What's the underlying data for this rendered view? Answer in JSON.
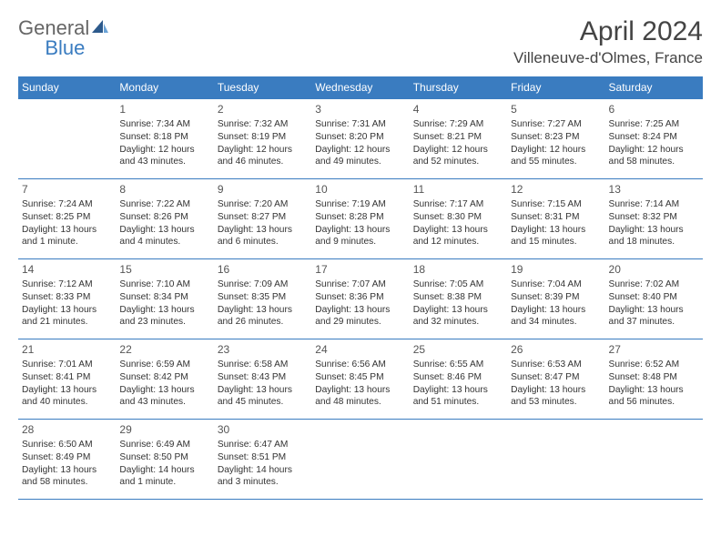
{
  "logo": {
    "text1": "General",
    "text2": "Blue"
  },
  "title": {
    "month": "April 2024",
    "location": "Villeneuve-d'Olmes, France"
  },
  "colors": {
    "brand_blue": "#3a7cc0",
    "text_dark": "#333333",
    "text_grey": "#555555",
    "background": "#ffffff"
  },
  "calendar": {
    "type": "table",
    "day_headers": [
      "Sunday",
      "Monday",
      "Tuesday",
      "Wednesday",
      "Thursday",
      "Friday",
      "Saturday"
    ],
    "weeks": [
      [
        {
          "day": "",
          "sunrise": "",
          "sunset": "",
          "daylight": ""
        },
        {
          "day": "1",
          "sunrise": "Sunrise: 7:34 AM",
          "sunset": "Sunset: 8:18 PM",
          "daylight": "Daylight: 12 hours and 43 minutes."
        },
        {
          "day": "2",
          "sunrise": "Sunrise: 7:32 AM",
          "sunset": "Sunset: 8:19 PM",
          "daylight": "Daylight: 12 hours and 46 minutes."
        },
        {
          "day": "3",
          "sunrise": "Sunrise: 7:31 AM",
          "sunset": "Sunset: 8:20 PM",
          "daylight": "Daylight: 12 hours and 49 minutes."
        },
        {
          "day": "4",
          "sunrise": "Sunrise: 7:29 AM",
          "sunset": "Sunset: 8:21 PM",
          "daylight": "Daylight: 12 hours and 52 minutes."
        },
        {
          "day": "5",
          "sunrise": "Sunrise: 7:27 AM",
          "sunset": "Sunset: 8:23 PM",
          "daylight": "Daylight: 12 hours and 55 minutes."
        },
        {
          "day": "6",
          "sunrise": "Sunrise: 7:25 AM",
          "sunset": "Sunset: 8:24 PM",
          "daylight": "Daylight: 12 hours and 58 minutes."
        }
      ],
      [
        {
          "day": "7",
          "sunrise": "Sunrise: 7:24 AM",
          "sunset": "Sunset: 8:25 PM",
          "daylight": "Daylight: 13 hours and 1 minute."
        },
        {
          "day": "8",
          "sunrise": "Sunrise: 7:22 AM",
          "sunset": "Sunset: 8:26 PM",
          "daylight": "Daylight: 13 hours and 4 minutes."
        },
        {
          "day": "9",
          "sunrise": "Sunrise: 7:20 AM",
          "sunset": "Sunset: 8:27 PM",
          "daylight": "Daylight: 13 hours and 6 minutes."
        },
        {
          "day": "10",
          "sunrise": "Sunrise: 7:19 AM",
          "sunset": "Sunset: 8:28 PM",
          "daylight": "Daylight: 13 hours and 9 minutes."
        },
        {
          "day": "11",
          "sunrise": "Sunrise: 7:17 AM",
          "sunset": "Sunset: 8:30 PM",
          "daylight": "Daylight: 13 hours and 12 minutes."
        },
        {
          "day": "12",
          "sunrise": "Sunrise: 7:15 AM",
          "sunset": "Sunset: 8:31 PM",
          "daylight": "Daylight: 13 hours and 15 minutes."
        },
        {
          "day": "13",
          "sunrise": "Sunrise: 7:14 AM",
          "sunset": "Sunset: 8:32 PM",
          "daylight": "Daylight: 13 hours and 18 minutes."
        }
      ],
      [
        {
          "day": "14",
          "sunrise": "Sunrise: 7:12 AM",
          "sunset": "Sunset: 8:33 PM",
          "daylight": "Daylight: 13 hours and 21 minutes."
        },
        {
          "day": "15",
          "sunrise": "Sunrise: 7:10 AM",
          "sunset": "Sunset: 8:34 PM",
          "daylight": "Daylight: 13 hours and 23 minutes."
        },
        {
          "day": "16",
          "sunrise": "Sunrise: 7:09 AM",
          "sunset": "Sunset: 8:35 PM",
          "daylight": "Daylight: 13 hours and 26 minutes."
        },
        {
          "day": "17",
          "sunrise": "Sunrise: 7:07 AM",
          "sunset": "Sunset: 8:36 PM",
          "daylight": "Daylight: 13 hours and 29 minutes."
        },
        {
          "day": "18",
          "sunrise": "Sunrise: 7:05 AM",
          "sunset": "Sunset: 8:38 PM",
          "daylight": "Daylight: 13 hours and 32 minutes."
        },
        {
          "day": "19",
          "sunrise": "Sunrise: 7:04 AM",
          "sunset": "Sunset: 8:39 PM",
          "daylight": "Daylight: 13 hours and 34 minutes."
        },
        {
          "day": "20",
          "sunrise": "Sunrise: 7:02 AM",
          "sunset": "Sunset: 8:40 PM",
          "daylight": "Daylight: 13 hours and 37 minutes."
        }
      ],
      [
        {
          "day": "21",
          "sunrise": "Sunrise: 7:01 AM",
          "sunset": "Sunset: 8:41 PM",
          "daylight": "Daylight: 13 hours and 40 minutes."
        },
        {
          "day": "22",
          "sunrise": "Sunrise: 6:59 AM",
          "sunset": "Sunset: 8:42 PM",
          "daylight": "Daylight: 13 hours and 43 minutes."
        },
        {
          "day": "23",
          "sunrise": "Sunrise: 6:58 AM",
          "sunset": "Sunset: 8:43 PM",
          "daylight": "Daylight: 13 hours and 45 minutes."
        },
        {
          "day": "24",
          "sunrise": "Sunrise: 6:56 AM",
          "sunset": "Sunset: 8:45 PM",
          "daylight": "Daylight: 13 hours and 48 minutes."
        },
        {
          "day": "25",
          "sunrise": "Sunrise: 6:55 AM",
          "sunset": "Sunset: 8:46 PM",
          "daylight": "Daylight: 13 hours and 51 minutes."
        },
        {
          "day": "26",
          "sunrise": "Sunrise: 6:53 AM",
          "sunset": "Sunset: 8:47 PM",
          "daylight": "Daylight: 13 hours and 53 minutes."
        },
        {
          "day": "27",
          "sunrise": "Sunrise: 6:52 AM",
          "sunset": "Sunset: 8:48 PM",
          "daylight": "Daylight: 13 hours and 56 minutes."
        }
      ],
      [
        {
          "day": "28",
          "sunrise": "Sunrise: 6:50 AM",
          "sunset": "Sunset: 8:49 PM",
          "daylight": "Daylight: 13 hours and 58 minutes."
        },
        {
          "day": "29",
          "sunrise": "Sunrise: 6:49 AM",
          "sunset": "Sunset: 8:50 PM",
          "daylight": "Daylight: 14 hours and 1 minute."
        },
        {
          "day": "30",
          "sunrise": "Sunrise: 6:47 AM",
          "sunset": "Sunset: 8:51 PM",
          "daylight": "Daylight: 14 hours and 3 minutes."
        },
        {
          "day": "",
          "sunrise": "",
          "sunset": "",
          "daylight": ""
        },
        {
          "day": "",
          "sunrise": "",
          "sunset": "",
          "daylight": ""
        },
        {
          "day": "",
          "sunrise": "",
          "sunset": "",
          "daylight": ""
        },
        {
          "day": "",
          "sunrise": "",
          "sunset": "",
          "daylight": ""
        }
      ]
    ]
  }
}
